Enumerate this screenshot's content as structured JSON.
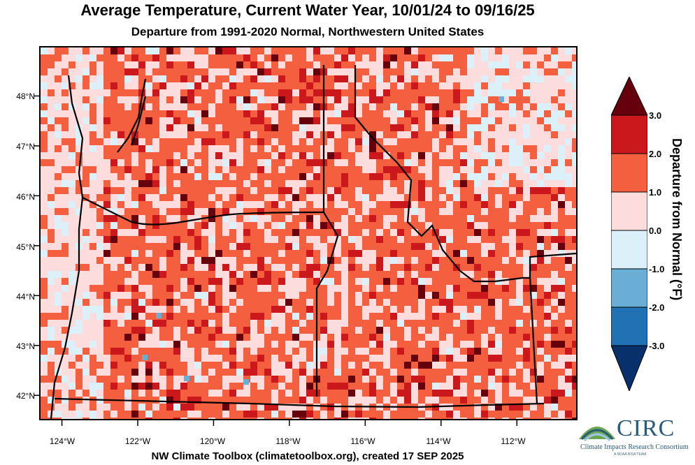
{
  "header": {
    "title": "Average Temperature, Current Water Year, 10/01/24 to 09/16/25",
    "subtitle": "Departure from 1991-2020 Normal, Northwestern United States"
  },
  "map": {
    "lat_labels": [
      "48°N",
      "47°N",
      "46°N",
      "45°N",
      "44°N",
      "43°N",
      "42°N"
    ],
    "lon_labels": [
      "124°W",
      "122°W",
      "120°W",
      "118°W",
      "116°W",
      "114°W",
      "112°W"
    ],
    "lat_values": [
      48,
      47,
      46,
      45,
      44,
      43,
      42
    ],
    "lon_values": [
      -124,
      -122,
      -120,
      -118,
      -116,
      -114,
      -112
    ],
    "extent": {
      "west": -124.6,
      "east": -110.4,
      "south": 41.5,
      "north": 49.0
    },
    "dominant_category": "1.0 to 2.0",
    "colors": {
      "dark_max": "#67000d",
      "red_2_3": "#cb181d",
      "red_1_2": "#f4603f",
      "pink_0_1": "#fcdcdc",
      "lightblue_m1_0": "#dcf0fa",
      "blue_m2_m1": "#6aaed6",
      "blue_m3_m2": "#2171b5",
      "dark_min": "#08306b"
    }
  },
  "colorbar": {
    "title": "Departure from Normal (°F)",
    "tick_labels": [
      "3.0",
      "2.0",
      "1.0",
      "0.0",
      "-1.0",
      "-2.0",
      "-3.0"
    ],
    "tick_values": [
      3.0,
      2.0,
      1.0,
      0.0,
      -1.0,
      -2.0,
      -3.0
    ]
  },
  "footer": {
    "credit": "NW Climate Toolbox (climatetoolbox.org), created 17 SEP 2025"
  },
  "logo": {
    "name": "CIRC",
    "full_name": "Climate Impacts Research Consortium",
    "tagline": "A NOAA RISA TEAM"
  }
}
